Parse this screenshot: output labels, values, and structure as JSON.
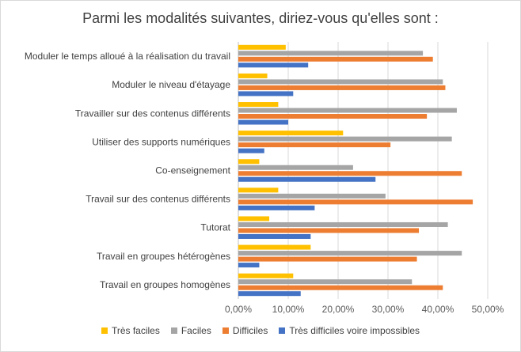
{
  "chart_data": {
    "type": "bar",
    "orientation": "horizontal",
    "title": "Parmi les modalités suivantes, diriez-vous qu'elles sont :",
    "categories": [
      "Moduler le temps alloué à la réalisation du travail",
      "Moduler le niveau d'étayage",
      "Travailler sur des contenus différents",
      "Utiliser des supports numériques",
      "Co-enseignement",
      "Travail sur des contenus différents",
      "Tutorat",
      "Travail en groupes hétérogènes",
      "Travail en groupes homogènes"
    ],
    "series": [
      {
        "name": "Très faciles",
        "color": "#ffc000",
        "values": [
          9.5,
          5.8,
          8.0,
          21.0,
          4.2,
          8.0,
          6.2,
          14.5,
          11.0
        ]
      },
      {
        "name": "Faciles",
        "color": "#a5a5a5",
        "values": [
          37.0,
          41.0,
          43.8,
          42.8,
          23.0,
          29.5,
          42.0,
          44.8,
          34.8
        ]
      },
      {
        "name": "Difficiles",
        "color": "#ed7d31",
        "values": [
          39.0,
          41.5,
          37.8,
          30.5,
          44.8,
          47.0,
          36.2,
          35.8,
          41.0
        ]
      },
      {
        "name": "Très difficiles voire impossibles",
        "color": "#4472c4",
        "values": [
          14.0,
          11.0,
          10.0,
          5.2,
          27.5,
          15.3,
          14.5,
          4.2,
          12.5
        ]
      }
    ],
    "xlim": [
      0,
      50
    ],
    "xticks": [
      "0,00%",
      "10,00%",
      "20,00%",
      "30,00%",
      "40,00%",
      "50,00%"
    ],
    "grid": true,
    "legend_position": "bottom"
  }
}
